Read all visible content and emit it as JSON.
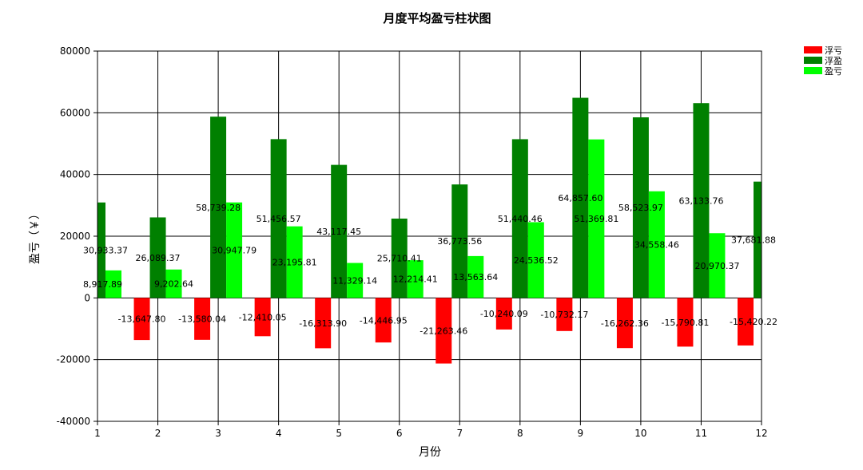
{
  "chart_data": {
    "type": "bar",
    "title": "月度平均盈亏柱状图",
    "xlabel": "月份",
    "ylabel": "盈亏（￥）",
    "categories": [
      "1",
      "2",
      "3",
      "4",
      "5",
      "6",
      "7",
      "8",
      "9",
      "10",
      "11",
      "12"
    ],
    "ylim": [
      -40000,
      80000
    ],
    "yticks": [
      "-40000",
      "-20000",
      "0",
      "20000",
      "40000",
      "60000",
      "80000"
    ],
    "grid": true,
    "legend_position": "top-right",
    "series": [
      {
        "name": "浮亏",
        "color": "#ff0000",
        "values": [
          null,
          -13647.8,
          -13580.04,
          -12410.05,
          -16313.9,
          -14446.95,
          -21263.46,
          -10240.09,
          -10732.17,
          -16262.36,
          -15790.81,
          -15420.22
        ],
        "labels": [
          "",
          "-13,647.80",
          "-13,580.04",
          "-12,410.05",
          "-16,313.90",
          "-14,446.95",
          "-21,263.46",
          "-10,240.09",
          "-10,732.17",
          "-16,262.36",
          "-15,790.81",
          "-15,420.22"
        ]
      },
      {
        "name": "浮盈",
        "color": "#008000",
        "values": [
          30933.37,
          26089.37,
          58739.28,
          51456.57,
          43117.45,
          25710.41,
          36773.56,
          51440.46,
          64857.6,
          58523.97,
          63133.76,
          37681.88
        ],
        "labels": [
          "30,933.37",
          "26,089.37",
          "58,739.28",
          "51,456.57",
          "43,117.45",
          "25,710.41",
          "36,773.56",
          "51,440.46",
          "64,857.60",
          "58,523.97",
          "63,133.76",
          "37,681.88"
        ]
      },
      {
        "name": "盈亏",
        "color": "#00ff00",
        "values": [
          8917.89,
          9202.64,
          30947.79,
          23195.81,
          11329.14,
          12214.41,
          13563.64,
          24536.52,
          51369.81,
          34558.46,
          20970.37,
          null
        ],
        "labels": [
          "8,917.89",
          "9,202.64",
          "30,947.79",
          "23,195.81",
          "11,329.14",
          "12,214.41",
          "13,563.64",
          "24,536.52",
          "51,369.81",
          "34,558.46",
          "20,970.37",
          ""
        ]
      }
    ]
  }
}
